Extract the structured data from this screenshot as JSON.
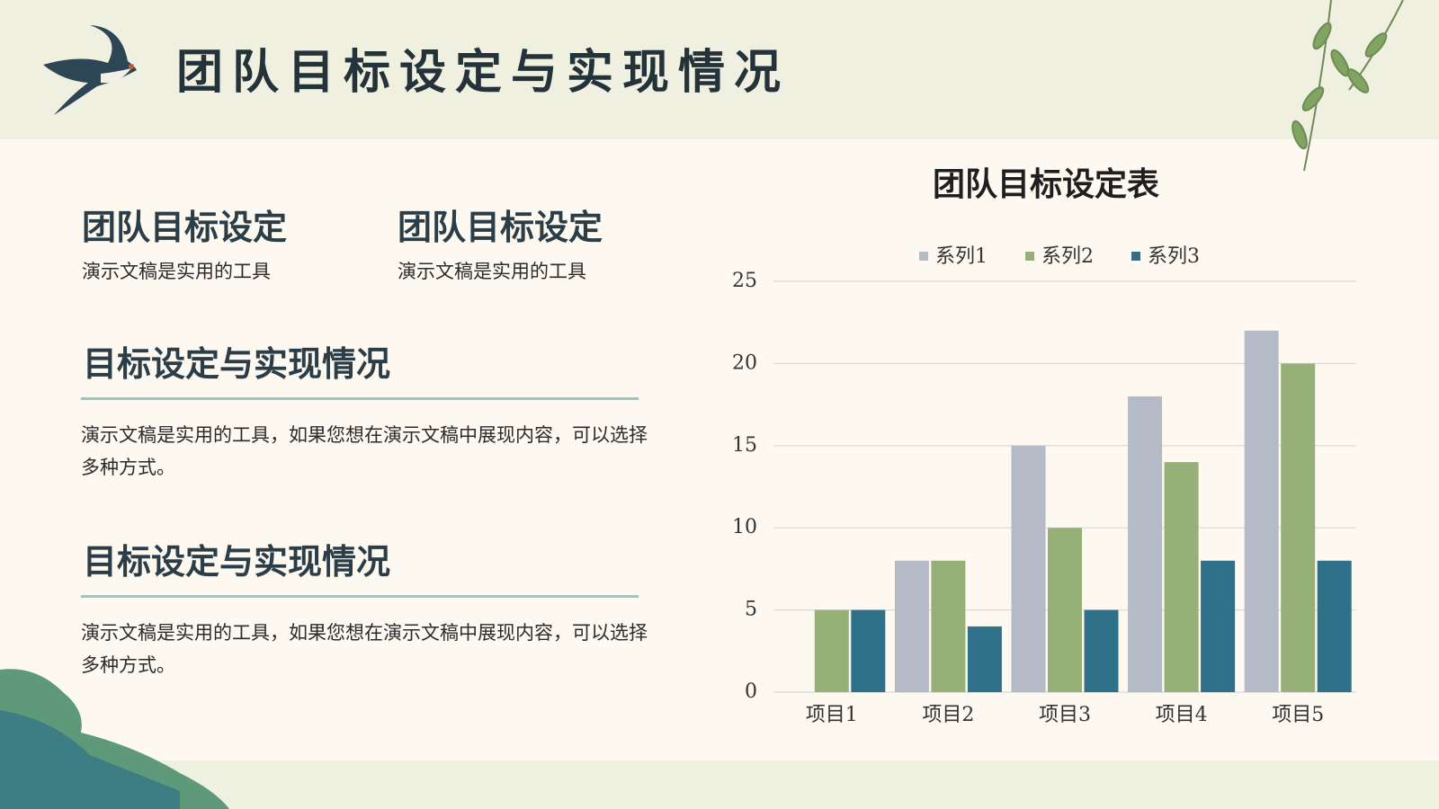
{
  "header": {
    "title": "团队目标设定与实现情况"
  },
  "blocks": [
    {
      "title": "团队目标设定",
      "text": "演示文稿是实用的工具"
    },
    {
      "title": "团队目标设定",
      "text": "演示文稿是实用的工具"
    }
  ],
  "sections": [
    {
      "title": "目标设定与实现情况",
      "text": "演示文稿是实用的工具，如果您想在演示文稿中展现内容，可以选择多种方式。"
    },
    {
      "title": "目标设定与实现情况",
      "text": "演示文稿是实用的工具，如果您想在演示文稿中展现内容，可以选择多种方式。"
    }
  ],
  "chart_data": {
    "type": "bar",
    "title": "团队目标设定表",
    "categories": [
      "项目1",
      "项目2",
      "项目3",
      "项目4",
      "项目5"
    ],
    "series": [
      {
        "name": "系列1",
        "color": "#b4bac6",
        "values": [
          0,
          8,
          15,
          18,
          22
        ]
      },
      {
        "name": "系列2",
        "color": "#97b077",
        "values": [
          5,
          8,
          10,
          14,
          20
        ]
      },
      {
        "name": "系列3",
        "color": "#2f7189",
        "values": [
          5,
          4,
          5,
          8,
          8
        ]
      }
    ],
    "ylim": [
      0,
      25
    ],
    "yticks": [
      0,
      5,
      10,
      15,
      20,
      25
    ],
    "grid": true,
    "legend": "top"
  }
}
